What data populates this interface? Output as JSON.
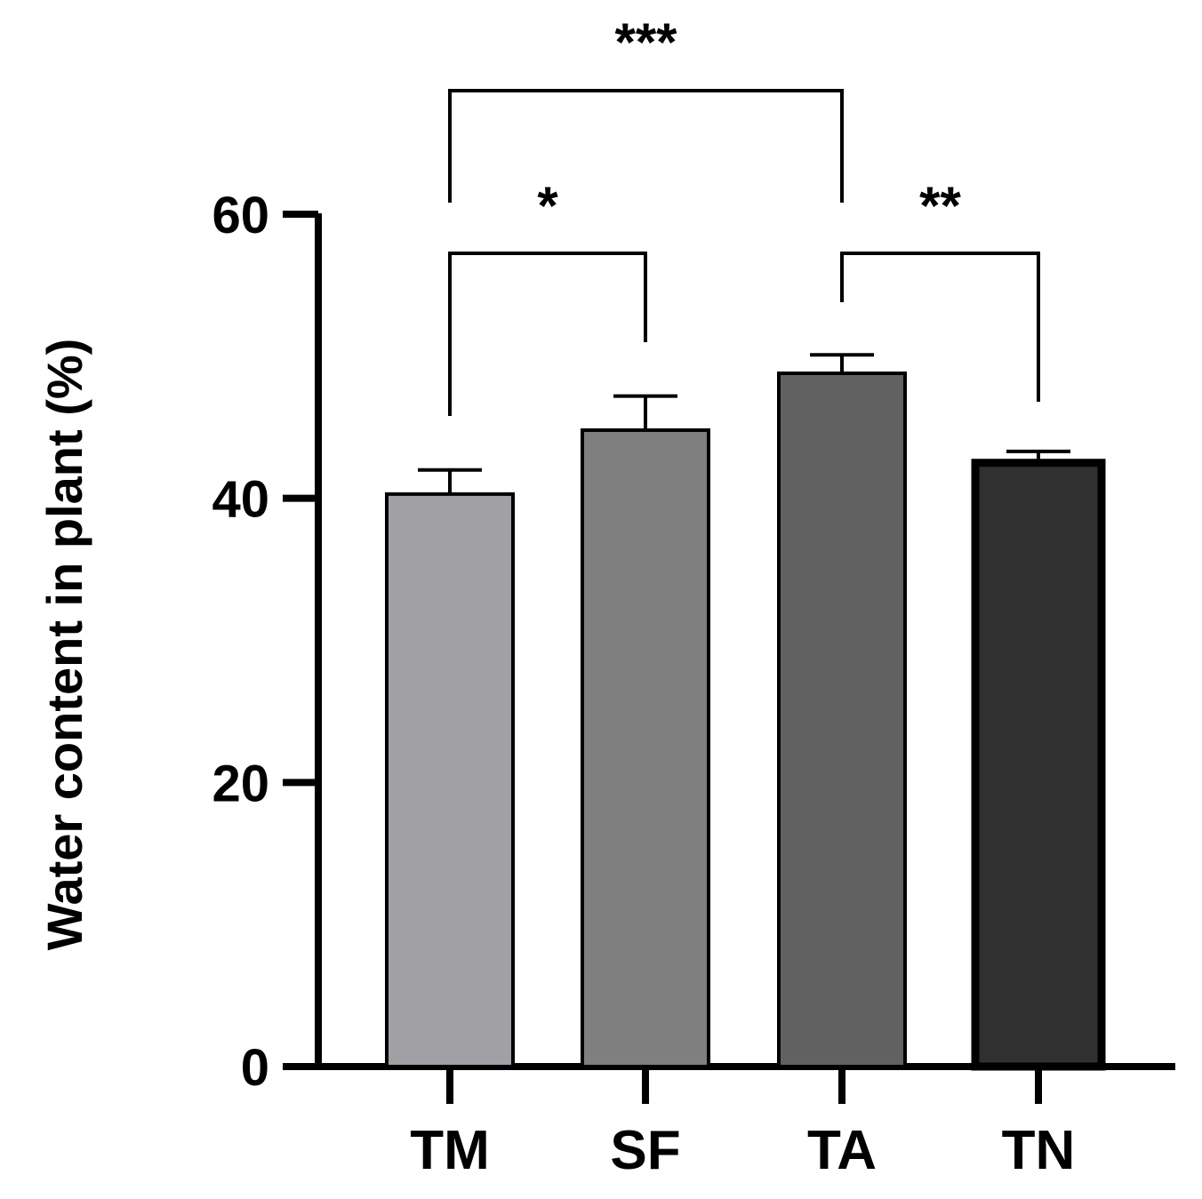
{
  "chart_data": {
    "type": "bar",
    "title": "",
    "xlabel": "",
    "ylabel": "Water content in plant (%)",
    "ylim": [
      0,
      60
    ],
    "yticks": [
      0,
      20,
      40,
      60
    ],
    "ytick_labels": [
      "0",
      "20",
      "40",
      "60"
    ],
    "grid": false,
    "categories": [
      "TM",
      "SF",
      "TA",
      "TN"
    ],
    "values": [
      40.3,
      44.8,
      48.8,
      42.5
    ],
    "errors": [
      1.7,
      2.4,
      1.3,
      0.8
    ],
    "bar_colors": [
      "#a1a0a5",
      "#7f7f7f",
      "#616161",
      "#303030"
    ],
    "significance": [
      {
        "from": "TM",
        "to": "TA",
        "label": "***"
      },
      {
        "from": "TM",
        "to": "SF",
        "label": "*"
      },
      {
        "from": "TA",
        "to": "TN",
        "label": "**"
      }
    ]
  }
}
